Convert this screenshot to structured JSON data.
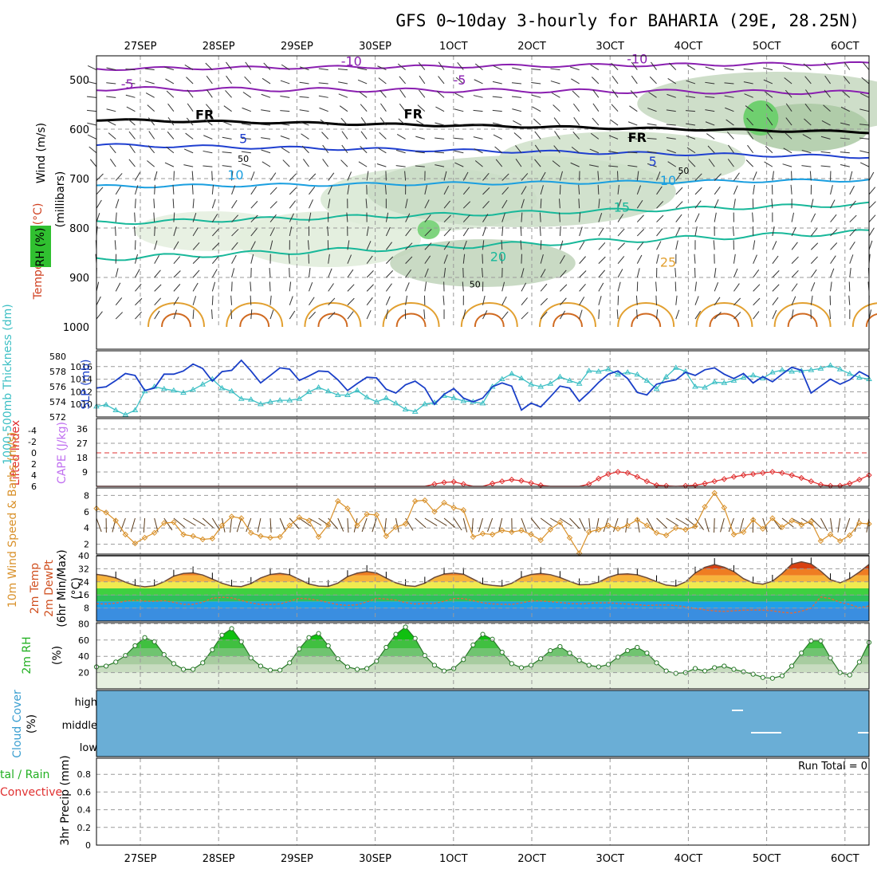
{
  "title": "GFS 0~10day 3-hourly for BAHARIA (29E, 28.25N)",
  "dates": [
    "27SEP",
    "28SEP",
    "29SEP",
    "30SEP",
    "1OCT",
    "2OCT",
    "3OCT",
    "4OCT",
    "5OCT",
    "6OCT"
  ],
  "colors": {
    "slp": "#1a3fc8",
    "thick": "#3cbfc4",
    "cape": "#c070f0",
    "li": "#e03030",
    "wind": "#d9912a",
    "barb": "#5a3b1a",
    "rh": "#22b022",
    "cloud": "#6aaed6",
    "purple": "#8a1fb0",
    "blue": "#1f3fd0",
    "cyan": "#1a9fe0",
    "teal": "#18b89a",
    "orange": "#e2a030"
  },
  "chart_data": [
    {
      "type": "contour",
      "id": "upper-air",
      "ylabel": "(millibars)",
      "panel_labels": [
        "Wind (m/s)",
        "Temperature (°C)",
        "RH (%)"
      ],
      "y_ticks": [
        500,
        600,
        700,
        800,
        900,
        1000
      ],
      "ylim": [
        1000,
        455
      ],
      "isotherm_labels": [
        {
          "text": "-10",
          "t": 0.33,
          "p": 472
        },
        {
          "text": "-10",
          "t": 0.7,
          "p": 467
        },
        {
          "text": "-5",
          "t": 0.04,
          "p": 518
        },
        {
          "text": "-5",
          "t": 0.47,
          "p": 510
        },
        {
          "text": "FR",
          "t": 0.14,
          "p": 580
        },
        {
          "text": "FR",
          "t": 0.41,
          "p": 578
        },
        {
          "text": "FR",
          "t": 0.7,
          "p": 626
        },
        {
          "text": "5",
          "t": 0.19,
          "p": 628
        },
        {
          "text": "5",
          "t": 0.72,
          "p": 674
        },
        {
          "text": "10",
          "t": 0.18,
          "p": 702
        },
        {
          "text": "10",
          "t": 0.74,
          "p": 713
        },
        {
          "text": "15",
          "t": 0.68,
          "p": 767
        },
        {
          "text": "20",
          "t": 0.52,
          "p": 867
        },
        {
          "text": "25",
          "t": 0.74,
          "p": 878
        },
        {
          "text": "50",
          "t": 0.19,
          "p": 666
        },
        {
          "text": "50",
          "t": 0.49,
          "p": 920
        },
        {
          "text": "50",
          "t": 0.76,
          "p": 690
        }
      ]
    },
    {
      "type": "line",
      "id": "slp-thickness",
      "ylabel_left": "1000-500mb Thickness (dm)",
      "ylabel_right": "SLP (mb)",
      "thick_ticks": [
        572,
        574,
        576,
        578,
        580
      ],
      "slp_ticks": [
        1010,
        1012,
        1014,
        1016
      ],
      "series": [
        {
          "name": "SLP (mb)",
          "values": [
            1012.6,
            1012.8,
            1013.8,
            1014.9,
            1014.6,
            1012.2,
            1012.6,
            1014.8,
            1014.8,
            1015.3,
            1016.4,
            1015.7,
            1013.7,
            1015.2,
            1015.4,
            1017.0,
            1015.3,
            1013.4,
            1014.6,
            1015.8,
            1015.6,
            1013.8,
            1014.5,
            1015.3,
            1015.2,
            1013.9,
            1012.2,
            1013.3,
            1014.3,
            1014.2,
            1012.4,
            1011.8,
            1013.1,
            1013.7,
            1012.6,
            1010.0,
            1011.6,
            1012.5,
            1011.0,
            1010.4,
            1011.0,
            1012.8,
            1013.4,
            1012.9,
            1009.1,
            1010.2,
            1009.6,
            1011.2,
            1012.9,
            1012.6,
            1010.5,
            1011.9,
            1013.5,
            1014.8,
            1015.3,
            1014.1,
            1011.9,
            1011.5,
            1013.2,
            1013.6,
            1013.9,
            1015.1,
            1014.6,
            1015.5,
            1015.8,
            1014.8,
            1014.1,
            1014.9,
            1013.4,
            1014.4,
            1013.6,
            1014.8,
            1015.9,
            1015.4,
            1011.8,
            1012.9,
            1014.0,
            1013.2,
            1013.9,
            1015.2,
            1014.4
          ]
        },
        {
          "name": "1000-500mb Thickness (dm)",
          "values": [
            573.4,
            573.6,
            572.9,
            572.3,
            572.9,
            575.4,
            576.0,
            575.7,
            575.5,
            575.2,
            575.6,
            576.3,
            577.0,
            575.8,
            575.4,
            574.4,
            574.3,
            573.7,
            574.0,
            574.2,
            574.2,
            574.4,
            575.3,
            575.9,
            575.4,
            574.9,
            574.9,
            575.5,
            574.6,
            574.0,
            574.5,
            573.8,
            573.0,
            572.7,
            573.7,
            573.9,
            574.8,
            574.5,
            574.1,
            574.0,
            573.8,
            576.0,
            577.0,
            577.7,
            577.1,
            576.3,
            576.0,
            576.4,
            577.3,
            576.8,
            576.4,
            578.1,
            578.0,
            578.3,
            577.6,
            577.9,
            577.6,
            576.8,
            575.7,
            577.3,
            578.5,
            578.0,
            576.0,
            575.9,
            576.6,
            576.5,
            576.8,
            577.2,
            577.5,
            577.1,
            577.9,
            578.2,
            578.0,
            578.1,
            578.2,
            578.4,
            578.8,
            578.3,
            577.7,
            577.2,
            577.0
          ]
        }
      ]
    },
    {
      "type": "line",
      "id": "cape-li",
      "ylabel_left": "Lifted Index",
      "ylabel_right": "CAPE (J/kg)",
      "li_ticks": [
        -4,
        -2,
        0,
        2,
        4,
        6
      ],
      "li_tick_labels": [
        "-4",
        "-2",
        "0",
        "2",
        "4",
        "6"
      ],
      "cape_ticks": [
        9,
        18,
        27,
        36
      ],
      "series": [
        {
          "name": "Lifted Index",
          "values": [
            6.0,
            6.0,
            6.0,
            6.0,
            6.0,
            6.0,
            6.0,
            6.0,
            6.0,
            6.0,
            6.0,
            6.0,
            6.0,
            6.0,
            6.0,
            6.0,
            6.0,
            6.0,
            6.0,
            6.0,
            6.0,
            6.0,
            6.0,
            6.0,
            6.0,
            6.0,
            6.0,
            6.0,
            6.0,
            6.0,
            6.0,
            6.0,
            6.0,
            6.0,
            6.0,
            5.6,
            5.3,
            5.2,
            5.6,
            6.0,
            6.0,
            5.5,
            5.1,
            4.8,
            5.0,
            5.4,
            5.8,
            6.0,
            6.0,
            6.0,
            6.0,
            5.6,
            4.6,
            3.8,
            3.4,
            3.6,
            4.3,
            5.1,
            5.8,
            5.9,
            6.0,
            5.9,
            5.8,
            5.5,
            5.1,
            4.7,
            4.3,
            4.0,
            3.8,
            3.6,
            3.4,
            3.6,
            4.0,
            4.5,
            5.1,
            5.7,
            5.9,
            5.9,
            5.5,
            4.8,
            4.0
          ]
        },
        {
          "name": "CAPE (J/kg)",
          "values": [
            0,
            0,
            0,
            0,
            0,
            0,
            0,
            0,
            0,
            0,
            0,
            0,
            0,
            0,
            0,
            0,
            0,
            0,
            0,
            0,
            0,
            0,
            0,
            0,
            0,
            0,
            0,
            0,
            0,
            0,
            0,
            0,
            0,
            0,
            0,
            0,
            0,
            0,
            0,
            0,
            0,
            0,
            0,
            0,
            0,
            0,
            0,
            0,
            0,
            0,
            0,
            0,
            0,
            0,
            0,
            0,
            0,
            0,
            0,
            0,
            0,
            0,
            0,
            0,
            0,
            0,
            0,
            0,
            0,
            0,
            0,
            0,
            0,
            0,
            0,
            0,
            0,
            0,
            0,
            0,
            0
          ]
        }
      ],
      "zero_line": 0
    },
    {
      "type": "line",
      "id": "wind",
      "ylabel": "10m Wind Speed & Barbs (m/s)",
      "y_ticks": [
        2,
        4,
        6,
        8
      ],
      "ylim": [
        0,
        9
      ],
      "series": [
        {
          "name": "10m Wind Speed",
          "values": [
            6.4,
            5.9,
            4.9,
            3.2,
            2.1,
            2.8,
            3.4,
            4.6,
            4.7,
            3.2,
            3.0,
            2.6,
            2.7,
            4.3,
            5.4,
            5.2,
            3.4,
            3.0,
            2.8,
            2.9,
            4.3,
            5.3,
            4.9,
            2.9,
            4.4,
            7.3,
            6.4,
            4.3,
            5.7,
            5.6,
            3.0,
            4.1,
            4.5,
            7.3,
            7.4,
            6.0,
            7.1,
            6.5,
            6.2,
            2.9,
            3.3,
            3.2,
            3.7,
            3.5,
            3.7,
            3.2,
            2.5,
            3.8,
            4.7,
            2.8,
            0.9,
            3.5,
            3.8,
            4.3,
            3.9,
            4.3,
            5.0,
            4.3,
            3.4,
            3.1,
            4.0,
            3.8,
            4.2,
            6.6,
            8.3,
            6.5,
            3.2,
            3.5,
            5.0,
            3.9,
            5.2,
            4.1,
            4.9,
            4.4,
            4.8,
            2.4,
            3.2,
            2.4,
            3.1,
            4.6,
            4.5
          ]
        }
      ]
    },
    {
      "type": "area",
      "id": "temp",
      "ylabel": "2m Temp 2m DewPt (6hr Min/Max) (°C)",
      "y_ticks": [
        8,
        16,
        24,
        32,
        40
      ],
      "ylim": [
        0,
        40
      ],
      "series": [
        {
          "name": "2m Temp",
          "values": [
            28.6,
            27.8,
            26.4,
            23.8,
            21.8,
            21.0,
            21.6,
            24.1,
            27.5,
            29.1,
            29.5,
            28.2,
            25.7,
            23.1,
            21.4,
            21.1,
            23.0,
            26.4,
            28.5,
            29.2,
            28.3,
            25.5,
            22.7,
            21.4,
            21.2,
            23.2,
            27.2,
            29.3,
            30.3,
            29.4,
            26.3,
            23.4,
            21.7,
            21.2,
            23.2,
            26.7,
            28.8,
            29.4,
            28.7,
            25.7,
            22.7,
            21.8,
            21.3,
            23.1,
            26.7,
            28.5,
            29.1,
            28.4,
            26.7,
            24.3,
            22.2,
            22.4,
            23.8,
            26.8,
            28.6,
            28.9,
            28.3,
            26.5,
            24.1,
            22.0,
            21.4,
            24.0,
            29.4,
            32.9,
            34.6,
            33.0,
            30.3,
            26.0,
            23.3,
            22.6,
            24.4,
            29.1,
            34.8,
            36.3,
            35.0,
            30.6,
            25.3,
            23.4,
            26.0,
            30.0,
            34.7
          ]
        },
        {
          "name": "2m DewPt",
          "values": [
            10.6,
            10.5,
            11.0,
            12.2,
            12.7,
            12.2,
            12.1,
            12.5,
            11.5,
            10.3,
            10.2,
            11.5,
            14.0,
            14.6,
            14.2,
            12.6,
            11.1,
            10.1,
            10.2,
            10.5,
            12.1,
            14.0,
            13.5,
            12.7,
            11.3,
            10.1,
            9.6,
            10.0,
            11.7,
            13.9,
            13.5,
            12.9,
            11.3,
            10.5,
            10.7,
            10.9,
            12.1,
            13.8,
            13.8,
            12.4,
            11.2,
            10.5,
            10.3,
            10.2,
            11.1,
            12.3,
            12.3,
            11.9,
            11.3,
            10.8,
            10.5,
            10.9,
            11.1,
            11.1,
            10.8,
            10.4,
            10.1,
            9.5,
            9.8,
            9.9,
            9.5,
            8.7,
            7.7,
            6.9,
            6.2,
            5.9,
            6.3,
            6.7,
            6.8,
            6.7,
            6.3,
            5.4,
            4.9,
            6.0,
            7.9,
            14.8,
            13.8,
            11.4,
            10.2,
            8.2,
            9.2
          ]
        }
      ]
    },
    {
      "type": "area",
      "id": "rh",
      "ylabel": "2m RH (%)",
      "y_ticks": [
        20,
        40,
        60,
        80
      ],
      "ylim": [
        0,
        85
      ],
      "series": [
        {
          "name": "2m RH",
          "values": [
            27,
            28,
            33,
            41,
            53,
            63,
            58,
            42,
            31,
            24,
            24,
            32,
            48,
            66,
            74,
            58,
            38,
            28,
            23,
            23,
            32,
            49,
            63,
            68,
            53,
            37,
            27,
            24,
            25,
            34,
            51,
            67,
            76,
            62,
            41,
            29,
            22,
            25,
            36,
            54,
            67,
            61,
            45,
            31,
            26,
            29,
            37,
            47,
            52,
            44,
            35,
            29,
            27,
            30,
            39,
            47,
            51,
            44,
            32,
            22,
            19,
            20,
            25,
            22,
            26,
            28,
            24,
            21,
            18,
            14,
            13,
            16,
            28,
            44,
            59,
            59,
            38,
            20,
            17,
            33,
            57
          ]
        }
      ]
    },
    {
      "type": "heatmap",
      "id": "cloud",
      "ylabel": "Cloud Cover (%)",
      "levels": [
        "high",
        "middle",
        "low"
      ]
    },
    {
      "type": "bar",
      "id": "precip",
      "ylabel": "3hr Precip (mm)",
      "side_label_1": "tal / Rain",
      "side_label_2": "Convective",
      "y_ticks": [
        0,
        0.2,
        0.4,
        0.6,
        0.8
      ],
      "ylim": [
        0,
        0.95
      ],
      "run_total": "Run Total = 0",
      "values": [
        0,
        0,
        0,
        0,
        0,
        0,
        0,
        0,
        0,
        0,
        0,
        0,
        0,
        0,
        0,
        0,
        0,
        0,
        0,
        0,
        0,
        0,
        0,
        0,
        0,
        0,
        0,
        0,
        0,
        0,
        0,
        0,
        0,
        0,
        0,
        0,
        0,
        0,
        0,
        0,
        0,
        0,
        0,
        0,
        0,
        0,
        0,
        0,
        0,
        0,
        0,
        0,
        0,
        0,
        0,
        0,
        0,
        0,
        0,
        0,
        0,
        0,
        0,
        0,
        0,
        0,
        0,
        0,
        0,
        0,
        0,
        0,
        0,
        0,
        0,
        0,
        0,
        0,
        0,
        0,
        0
      ]
    }
  ]
}
